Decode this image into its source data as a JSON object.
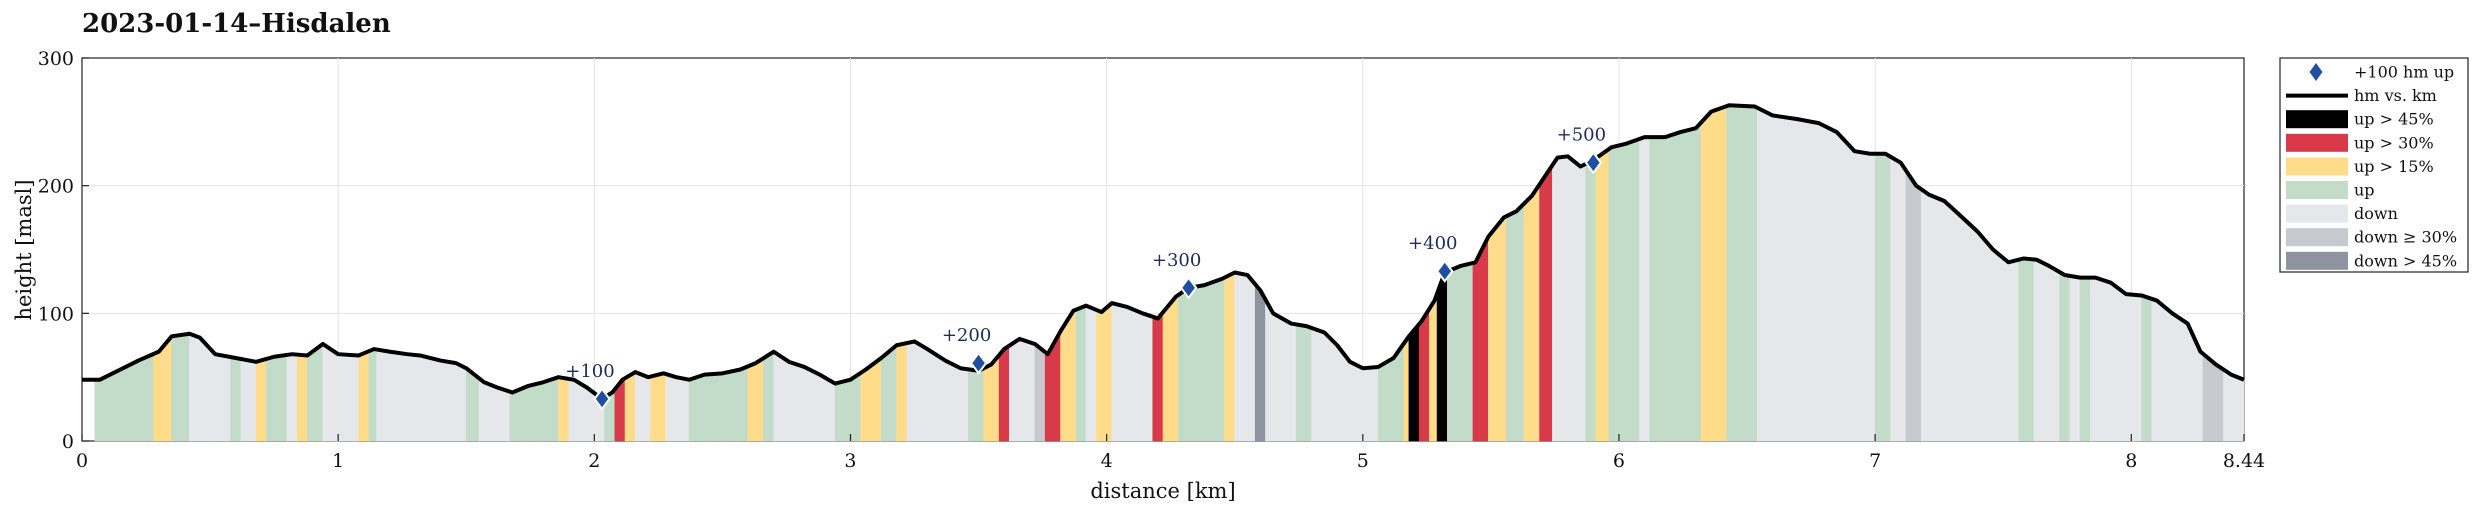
{
  "chart_data": {
    "type": "area",
    "title": "2023-01-14–Hisdalen",
    "xlabel": "distance [km]",
    "ylabel": "height [masl]",
    "xlim": [
      0,
      8.44
    ],
    "ylim": [
      0,
      300
    ],
    "x_ticks": [
      0,
      1,
      2,
      3,
      4,
      5,
      6,
      7,
      8,
      8.44
    ],
    "x_tick_labels": [
      "0",
      "1",
      "2",
      "3",
      "4",
      "5",
      "6",
      "7",
      "8",
      "8.44"
    ],
    "y_ticks": [
      0,
      100,
      200,
      300
    ],
    "y_tick_labels": [
      "0",
      "100",
      "200",
      "300"
    ],
    "grid": true,
    "legend_position": "outside-right",
    "legend": [
      {
        "key": "marker",
        "label": "+100 hm up"
      },
      {
        "key": "line",
        "label": "hm vs. km"
      },
      {
        "key": "up45",
        "label": "up > 45%"
      },
      {
        "key": "up30",
        "label": "up > 30%"
      },
      {
        "key": "up15",
        "label": "up > 15%"
      },
      {
        "key": "up",
        "label": "up"
      },
      {
        "key": "down",
        "label": "down"
      },
      {
        "key": "down30",
        "label": "down ≥ 30%"
      },
      {
        "key": "down45",
        "label": "down > 45%"
      }
    ],
    "colors": {
      "up45": "#000000",
      "up30": "#d93a4a",
      "up15": "#fedc8a",
      "up": "#c2dcc9",
      "down": "#e6e7ea",
      "down30": "#c8c9ce",
      "down45": "#8e93a0",
      "line": "#000000",
      "marker": "#1f4fa0"
    },
    "profile": [
      [
        0,
        48
      ],
      [
        0.07,
        48
      ],
      [
        0.15,
        56
      ],
      [
        0.22,
        63
      ],
      [
        0.3,
        70
      ],
      [
        0.35,
        82
      ],
      [
        0.42,
        84
      ],
      [
        0.46,
        81
      ],
      [
        0.52,
        68
      ],
      [
        0.6,
        65
      ],
      [
        0.68,
        62
      ],
      [
        0.75,
        66
      ],
      [
        0.82,
        68
      ],
      [
        0.88,
        67
      ],
      [
        0.94,
        76
      ],
      [
        1.0,
        68
      ],
      [
        1.08,
        67
      ],
      [
        1.14,
        72
      ],
      [
        1.2,
        70
      ],
      [
        1.27,
        68
      ],
      [
        1.32,
        67
      ],
      [
        1.4,
        63
      ],
      [
        1.46,
        61
      ],
      [
        1.5,
        57
      ],
      [
        1.57,
        46
      ],
      [
        1.62,
        42
      ],
      [
        1.68,
        38
      ],
      [
        1.74,
        43
      ],
      [
        1.8,
        46
      ],
      [
        1.86,
        50
      ],
      [
        1.92,
        48
      ],
      [
        1.97,
        42
      ],
      [
        2.03,
        33
      ],
      [
        2.07,
        38
      ],
      [
        2.11,
        48
      ],
      [
        2.16,
        54
      ],
      [
        2.21,
        50
      ],
      [
        2.27,
        53
      ],
      [
        2.32,
        50
      ],
      [
        2.37,
        48
      ],
      [
        2.43,
        52
      ],
      [
        2.5,
        53
      ],
      [
        2.57,
        56
      ],
      [
        2.63,
        61
      ],
      [
        2.7,
        70
      ],
      [
        2.76,
        62
      ],
      [
        2.82,
        58
      ],
      [
        2.88,
        52
      ],
      [
        2.94,
        45
      ],
      [
        3.0,
        48
      ],
      [
        3.06,
        56
      ],
      [
        3.12,
        65
      ],
      [
        3.18,
        75
      ],
      [
        3.25,
        78
      ],
      [
        3.3,
        72
      ],
      [
        3.37,
        63
      ],
      [
        3.43,
        57
      ],
      [
        3.5,
        55
      ],
      [
        3.55,
        60
      ],
      [
        3.6,
        72
      ],
      [
        3.66,
        80
      ],
      [
        3.72,
        76
      ],
      [
        3.77,
        68
      ],
      [
        3.82,
        86
      ],
      [
        3.87,
        102
      ],
      [
        3.92,
        106
      ],
      [
        3.98,
        101
      ],
      [
        4.02,
        108
      ],
      [
        4.08,
        105
      ],
      [
        4.14,
        100
      ],
      [
        4.2,
        96
      ],
      [
        4.27,
        113
      ],
      [
        4.32,
        120
      ],
      [
        4.38,
        122
      ],
      [
        4.45,
        127
      ],
      [
        4.5,
        132
      ],
      [
        4.55,
        130
      ],
      [
        4.6,
        118
      ],
      [
        4.65,
        100
      ],
      [
        4.72,
        92
      ],
      [
        4.78,
        90
      ],
      [
        4.85,
        85
      ],
      [
        4.9,
        75
      ],
      [
        4.95,
        62
      ],
      [
        5.0,
        57
      ],
      [
        5.06,
        58
      ],
      [
        5.12,
        65
      ],
      [
        5.18,
        82
      ],
      [
        5.23,
        94
      ],
      [
        5.28,
        110
      ],
      [
        5.32,
        132
      ],
      [
        5.38,
        137
      ],
      [
        5.44,
        140
      ],
      [
        5.49,
        160
      ],
      [
        5.55,
        175
      ],
      [
        5.6,
        180
      ],
      [
        5.66,
        192
      ],
      [
        5.72,
        210
      ],
      [
        5.76,
        222
      ],
      [
        5.8,
        223
      ],
      [
        5.85,
        215
      ],
      [
        5.9,
        220
      ],
      [
        5.97,
        230
      ],
      [
        6.03,
        233
      ],
      [
        6.1,
        238
      ],
      [
        6.18,
        238
      ],
      [
        6.24,
        242
      ],
      [
        6.3,
        245
      ],
      [
        6.36,
        258
      ],
      [
        6.43,
        263
      ],
      [
        6.53,
        262
      ],
      [
        6.6,
        255
      ],
      [
        6.7,
        252
      ],
      [
        6.78,
        249
      ],
      [
        6.85,
        242
      ],
      [
        6.92,
        227
      ],
      [
        6.98,
        225
      ],
      [
        7.04,
        225
      ],
      [
        7.1,
        218
      ],
      [
        7.16,
        200
      ],
      [
        7.21,
        193
      ],
      [
        7.27,
        188
      ],
      [
        7.33,
        177
      ],
      [
        7.4,
        164
      ],
      [
        7.46,
        150
      ],
      [
        7.52,
        140
      ],
      [
        7.58,
        143
      ],
      [
        7.63,
        142
      ],
      [
        7.68,
        137
      ],
      [
        7.74,
        130
      ],
      [
        7.8,
        128
      ],
      [
        7.86,
        128
      ],
      [
        7.92,
        124
      ],
      [
        7.98,
        115
      ],
      [
        8.04,
        114
      ],
      [
        8.1,
        110
      ],
      [
        8.16,
        100
      ],
      [
        8.22,
        92
      ],
      [
        8.27,
        70
      ],
      [
        8.33,
        60
      ],
      [
        8.39,
        52
      ],
      [
        8.44,
        48
      ]
    ],
    "stripes": [
      [
        0.05,
        0.28,
        "up"
      ],
      [
        0.28,
        0.35,
        "up15"
      ],
      [
        0.35,
        0.42,
        "up"
      ],
      [
        0.42,
        0.52,
        "down"
      ],
      [
        0.52,
        0.58,
        "down"
      ],
      [
        0.58,
        0.62,
        "up"
      ],
      [
        0.62,
        0.68,
        "down"
      ],
      [
        0.68,
        0.72,
        "up15"
      ],
      [
        0.72,
        0.8,
        "up"
      ],
      [
        0.8,
        0.84,
        "down"
      ],
      [
        0.84,
        0.88,
        "up15"
      ],
      [
        0.88,
        0.94,
        "up"
      ],
      [
        0.94,
        1.0,
        "down"
      ],
      [
        1.0,
        1.08,
        "down"
      ],
      [
        1.08,
        1.12,
        "up15"
      ],
      [
        1.12,
        1.15,
        "up"
      ],
      [
        1.15,
        1.5,
        "down"
      ],
      [
        1.5,
        1.55,
        "up"
      ],
      [
        1.55,
        1.67,
        "down"
      ],
      [
        1.67,
        1.74,
        "up"
      ],
      [
        1.74,
        1.8,
        "up"
      ],
      [
        1.8,
        1.86,
        "up"
      ],
      [
        1.86,
        1.9,
        "up15"
      ],
      [
        1.9,
        2.04,
        "down"
      ],
      [
        2.04,
        2.08,
        "up"
      ],
      [
        2.08,
        2.12,
        "up30"
      ],
      [
        2.12,
        2.16,
        "up15"
      ],
      [
        2.16,
        2.22,
        "down"
      ],
      [
        2.22,
        2.28,
        "up15"
      ],
      [
        2.28,
        2.37,
        "down"
      ],
      [
        2.37,
        2.44,
        "up"
      ],
      [
        2.44,
        2.5,
        "up"
      ],
      [
        2.5,
        2.6,
        "up"
      ],
      [
        2.6,
        2.66,
        "up15"
      ],
      [
        2.66,
        2.7,
        "up"
      ],
      [
        2.7,
        2.94,
        "down"
      ],
      [
        2.94,
        3.04,
        "up"
      ],
      [
        3.04,
        3.12,
        "up15"
      ],
      [
        3.12,
        3.18,
        "up"
      ],
      [
        3.18,
        3.22,
        "up15"
      ],
      [
        3.22,
        3.46,
        "down"
      ],
      [
        3.46,
        3.52,
        "up"
      ],
      [
        3.52,
        3.58,
        "up15"
      ],
      [
        3.58,
        3.62,
        "up30"
      ],
      [
        3.62,
        3.72,
        "down"
      ],
      [
        3.72,
        3.76,
        "down30"
      ],
      [
        3.76,
        3.82,
        "up30"
      ],
      [
        3.82,
        3.88,
        "up15"
      ],
      [
        3.88,
        3.92,
        "up"
      ],
      [
        3.92,
        3.96,
        "down"
      ],
      [
        3.96,
        4.02,
        "up15"
      ],
      [
        4.02,
        4.18,
        "down"
      ],
      [
        4.18,
        4.22,
        "up30"
      ],
      [
        4.22,
        4.28,
        "up15"
      ],
      [
        4.28,
        4.46,
        "up"
      ],
      [
        4.46,
        4.5,
        "up15"
      ],
      [
        4.5,
        4.58,
        "down"
      ],
      [
        4.58,
        4.62,
        "down45"
      ],
      [
        4.62,
        4.74,
        "down"
      ],
      [
        4.74,
        4.8,
        "up"
      ],
      [
        4.8,
        5.06,
        "down"
      ],
      [
        5.06,
        5.16,
        "up"
      ],
      [
        5.16,
        5.18,
        "up15"
      ],
      [
        5.18,
        5.22,
        "up45"
      ],
      [
        5.22,
        5.26,
        "up30"
      ],
      [
        5.26,
        5.29,
        "up15"
      ],
      [
        5.29,
        5.33,
        "up45"
      ],
      [
        5.33,
        5.43,
        "up"
      ],
      [
        5.43,
        5.49,
        "up30"
      ],
      [
        5.49,
        5.56,
        "up15"
      ],
      [
        5.56,
        5.63,
        "up"
      ],
      [
        5.63,
        5.69,
        "up15"
      ],
      [
        5.69,
        5.74,
        "up30"
      ],
      [
        5.74,
        5.87,
        "down"
      ],
      [
        5.87,
        5.91,
        "up"
      ],
      [
        5.91,
        5.96,
        "up15"
      ],
      [
        5.96,
        6.08,
        "up"
      ],
      [
        6.08,
        6.12,
        "down"
      ],
      [
        6.12,
        6.17,
        "up"
      ],
      [
        6.17,
        6.32,
        "up"
      ],
      [
        6.32,
        6.42,
        "up15"
      ],
      [
        6.42,
        6.54,
        "up"
      ],
      [
        6.54,
        7.0,
        "down"
      ],
      [
        7.0,
        7.06,
        "up"
      ],
      [
        7.06,
        7.12,
        "down"
      ],
      [
        7.12,
        7.18,
        "down30"
      ],
      [
        7.18,
        7.56,
        "down"
      ],
      [
        7.56,
        7.62,
        "up"
      ],
      [
        7.62,
        7.72,
        "down"
      ],
      [
        7.72,
        7.76,
        "up"
      ],
      [
        7.76,
        7.8,
        "down"
      ],
      [
        7.8,
        7.84,
        "up"
      ],
      [
        7.84,
        8.04,
        "down"
      ],
      [
        8.04,
        8.08,
        "up"
      ],
      [
        8.08,
        8.28,
        "down"
      ],
      [
        8.28,
        8.36,
        "down30"
      ],
      [
        8.36,
        8.44,
        "down"
      ]
    ],
    "markers": [
      {
        "label": "+100",
        "x": 2.03,
        "y": 33
      },
      {
        "label": "+200",
        "x": 3.5,
        "y": 61
      },
      {
        "label": "+300",
        "x": 4.32,
        "y": 120
      },
      {
        "label": "+400",
        "x": 5.32,
        "y": 133
      },
      {
        "label": "+500",
        "x": 5.9,
        "y": 218
      }
    ]
  }
}
